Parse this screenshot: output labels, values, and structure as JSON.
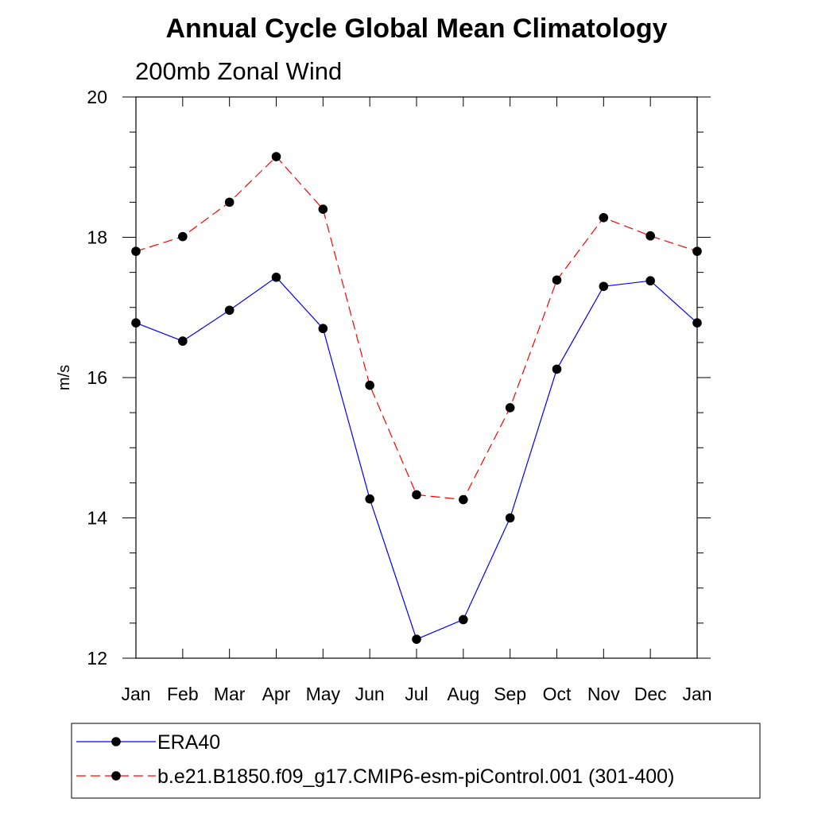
{
  "chart_data": {
    "type": "line",
    "title": "Annual Cycle Global Mean Climatology",
    "subtitle": "200mb Zonal Wind",
    "ylabel": "m/s",
    "xlabel": "",
    "categories": [
      "Jan",
      "Feb",
      "Mar",
      "Apr",
      "May",
      "Jun",
      "Jul",
      "Aug",
      "Sep",
      "Oct",
      "Nov",
      "Dec",
      "Jan"
    ],
    "ylim": [
      12,
      20
    ],
    "yticks": [
      12,
      14,
      16,
      18,
      20
    ],
    "yticks_labels": [
      "12",
      "14",
      "16",
      "18",
      "20"
    ],
    "grid": false,
    "legend_placement": "bottom",
    "series": [
      {
        "name": "ERA40",
        "color": "#0000ff",
        "line_style": "solid",
        "marker": "filled-circle",
        "values": [
          16.78,
          16.52,
          16.96,
          17.43,
          16.7,
          14.27,
          12.27,
          12.55,
          14.0,
          16.12,
          17.3,
          17.38,
          16.78
        ]
      },
      {
        "name": "b.e21.B1850.f09_g17.CMIP6-esm-piControl.001 (301-400)",
        "color": "#ff0000",
        "line_style": "dashed",
        "marker": "filled-circle",
        "values": [
          17.8,
          18.01,
          18.5,
          19.15,
          18.4,
          15.89,
          14.33,
          14.26,
          15.57,
          17.39,
          18.28,
          18.02,
          17.8
        ]
      }
    ]
  }
}
